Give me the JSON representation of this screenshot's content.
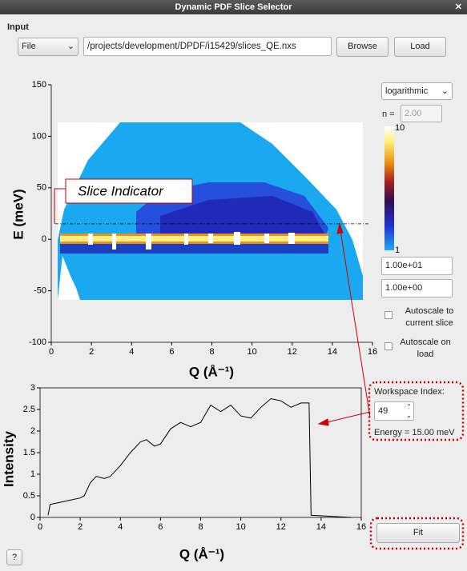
{
  "window": {
    "title": "Dynamic PDF Slice Selector"
  },
  "input": {
    "label": "Input",
    "source": "File",
    "path": "/projects/development/DPDF/i15429/slices_QE.nxs",
    "browse": "Browse",
    "load": "Load"
  },
  "chart_data": [
    {
      "type": "heatmap",
      "ylabel": "E (meV)",
      "xlabel": "Q (Å⁻¹)",
      "xlim": [
        0,
        16
      ],
      "ylim": [
        -100,
        150
      ],
      "xticks": [
        0,
        2,
        4,
        6,
        8,
        10,
        12,
        14,
        16
      ],
      "yticks": [
        -100,
        -50,
        0,
        50,
        100,
        150
      ],
      "annotation": "Slice Indicator",
      "slice_energy": 15
    },
    {
      "type": "line",
      "ylabel": "Intensity",
      "xlabel": "Q (Å⁻¹)",
      "xlim": [
        0,
        16
      ],
      "ylim": [
        0,
        3
      ],
      "xticks": [
        0,
        2,
        4,
        6,
        8,
        10,
        12,
        14,
        16
      ],
      "yticks": [
        0,
        0.5,
        1,
        1.5,
        2,
        2.5,
        3
      ],
      "color": "#000000",
      "x": [
        0.4,
        0.5,
        1,
        1.5,
        2,
        2.2,
        2.5,
        2.8,
        3.2,
        3.5,
        4,
        4.5,
        5,
        5.3,
        5.7,
        6,
        6.5,
        7,
        7.5,
        8,
        8.5,
        9,
        9.5,
        10,
        10.5,
        11,
        11.5,
        12,
        12.5,
        13,
        13.4,
        13.5,
        15.5
      ],
      "values": [
        0.05,
        0.3,
        0.35,
        0.4,
        0.45,
        0.5,
        0.8,
        0.95,
        0.9,
        0.95,
        1.2,
        1.5,
        1.75,
        1.8,
        1.65,
        1.7,
        2.05,
        2.2,
        2.1,
        2.2,
        2.6,
        2.45,
        2.6,
        2.35,
        2.3,
        2.55,
        2.75,
        2.7,
        2.55,
        2.65,
        2.65,
        0.05,
        0
      ]
    }
  ],
  "colorbar": {
    "scale": "logarithmic",
    "n_label": "n =",
    "n": "2.00",
    "max_label": 10,
    "min_label": 1,
    "max": "1.00e+01",
    "min": "1.00e+00",
    "autoscale_slice": "Autoscale to current slice",
    "autoscale_load": "Autoscale on load"
  },
  "workspace": {
    "label": "Workspace Index:",
    "index": 49,
    "energy": "Energy = 15.00 meV"
  },
  "buttons": {
    "fit": "Fit",
    "help": "?"
  }
}
